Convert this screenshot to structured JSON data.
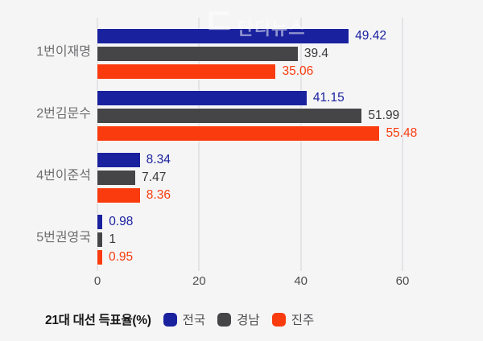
{
  "watermark": {
    "glyph": "ㄷ",
    "text": "단디뉴스"
  },
  "colors": {
    "background": "#f5f5f6",
    "gridline": "#e4e4e7",
    "category_label": "#6e6e70",
    "tick_label": "#4d4d4f",
    "legend_title_color": "#161616",
    "blue": "#1a219e",
    "gray": "#454548",
    "orange": "#f93b0e"
  },
  "chart_data": {
    "type": "bar",
    "orientation": "horizontal",
    "legend_title": "21대 대선 득표율(%)",
    "legend_position": "bottom",
    "grid": "vertical",
    "categories": [
      "1번이재명",
      "2번김문수",
      "4번이준석",
      "5번권영국"
    ],
    "series": [
      {
        "name": "전국",
        "color": "#1a219e",
        "label_color": "#1a219e",
        "values": [
          49.42,
          41.15,
          8.34,
          0.98
        ],
        "labels": [
          "49.42",
          "41.15",
          "8.34",
          "0.98"
        ]
      },
      {
        "name": "경남",
        "color": "#454548",
        "label_color": "#3a3a3c",
        "values": [
          39.4,
          51.99,
          7.47,
          1
        ],
        "labels": [
          "39.4",
          "51.99",
          "7.47",
          "1"
        ]
      },
      {
        "name": "진주",
        "color": "#f93b0e",
        "label_color": "#f93b0e",
        "values": [
          35.06,
          55.48,
          8.36,
          0.95
        ],
        "labels": [
          "35.06",
          "55.48",
          "8.36",
          "0.95"
        ]
      }
    ],
    "x_ticks": [
      0,
      20,
      40,
      60
    ],
    "xlim": [
      0,
      60
    ]
  }
}
